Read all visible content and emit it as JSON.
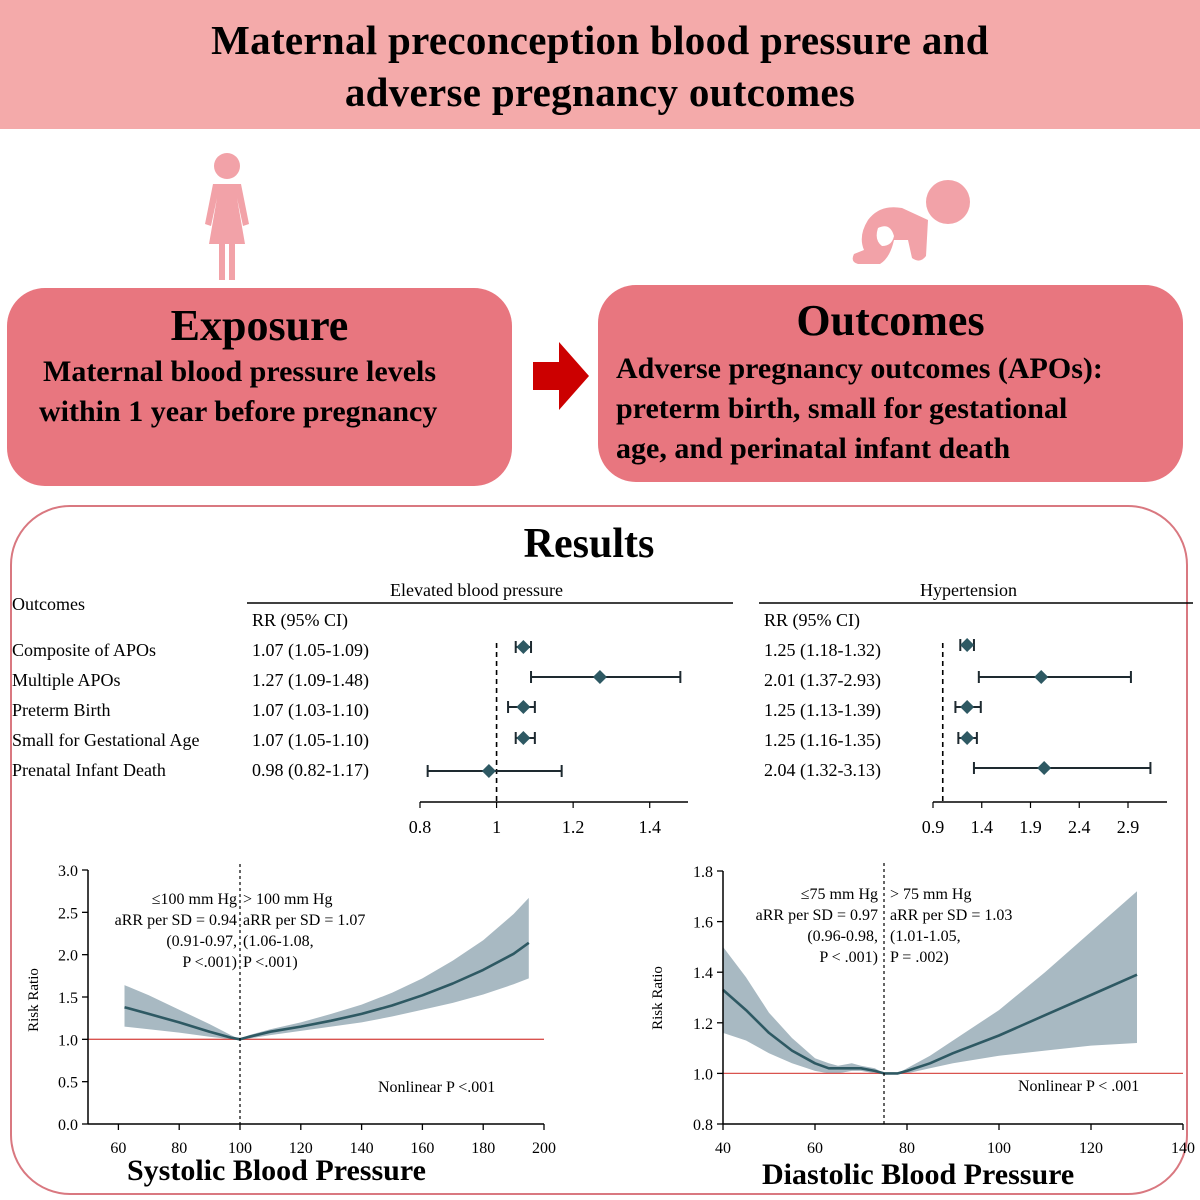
{
  "banner": {
    "title_line1": "Maternal preconception blood pressure and",
    "title_line2": "adverse pregnancy outcomes"
  },
  "exposure": {
    "title": "Exposure",
    "line1": "Maternal blood pressure levels",
    "line2": "within 1 year before pregnancy"
  },
  "outcomes": {
    "title": "Outcomes",
    "line1": "Adverse pregnancy outcomes (APOs):",
    "line2": "preterm birth, small for gestational",
    "line3": "age, and perinatal infant death"
  },
  "colors": {
    "banner": "#f4aaaa",
    "box": "#e8767f",
    "icon": "#f2a2a8",
    "arrow": "#cc0000",
    "marker": "#2e5963",
    "band": "#a8b9c2",
    "refline": "#d9534f"
  },
  "results": {
    "title": "Results",
    "outcomes_header": "Outcomes",
    "rows": [
      {
        "label": "Composite of APOs",
        "elevated": "1.07 (1.05-1.09)",
        "hypertension": "1.25 (1.18-1.32)"
      },
      {
        "label": "Multiple APOs",
        "elevated": "1.27 (1.09-1.48)",
        "hypertension": "2.01 (1.37-2.93)"
      },
      {
        "label": "Preterm Birth",
        "elevated": "1.07 (1.03-1.10)",
        "hypertension": "1.25 (1.13-1.39)"
      },
      {
        "label": "Small for Gestational Age",
        "elevated": "1.07 (1.05-1.10)",
        "hypertension": "1.25 (1.16-1.35)"
      },
      {
        "label": "Prenatal Infant Death",
        "elevated": "0.98 (0.82-1.17)",
        "hypertension": "2.04 (1.32-3.13)"
      }
    ]
  },
  "chart_data": [
    {
      "type": "forest",
      "title": "Elevated blood pressure",
      "column_header": "RR (95% CI)",
      "reference": 1,
      "xlim": [
        0.8,
        1.5
      ],
      "xticks": [
        "0.8",
        "1",
        "1.2",
        "1.4"
      ],
      "points": [
        {
          "label": "Composite of APOs",
          "rr": 1.07,
          "lo": 1.05,
          "hi": 1.09
        },
        {
          "label": "Multiple APOs",
          "rr": 1.27,
          "lo": 1.09,
          "hi": 1.48
        },
        {
          "label": "Preterm Birth",
          "rr": 1.07,
          "lo": 1.03,
          "hi": 1.1
        },
        {
          "label": "Small for Gestational Age",
          "rr": 1.07,
          "lo": 1.05,
          "hi": 1.1
        },
        {
          "label": "Prenatal Infant Death",
          "rr": 0.98,
          "lo": 0.82,
          "hi": 1.17
        }
      ]
    },
    {
      "type": "forest",
      "title": "Hypertension",
      "column_header": "RR (95% CI)",
      "reference": 1,
      "xlim": [
        0.9,
        3.3
      ],
      "xticks": [
        "0.9",
        "1.4",
        "1.9",
        "2.4",
        "2.9"
      ],
      "points": [
        {
          "label": "Composite of APOs",
          "rr": 1.25,
          "lo": 1.18,
          "hi": 1.32
        },
        {
          "label": "Multiple APOs",
          "rr": 2.01,
          "lo": 1.37,
          "hi": 2.93
        },
        {
          "label": "Preterm Birth",
          "rr": 1.25,
          "lo": 1.13,
          "hi": 1.39
        },
        {
          "label": "Small for Gestational Age",
          "rr": 1.25,
          "lo": 1.16,
          "hi": 1.35
        },
        {
          "label": "Prenatal Infant Death",
          "rr": 2.04,
          "lo": 1.32,
          "hi": 3.13
        }
      ]
    },
    {
      "type": "line",
      "title": "Systolic Blood Pressure",
      "ylabel": "Risk Ratio",
      "xlim": [
        50,
        200
      ],
      "ylim": [
        0,
        3
      ],
      "xticks": [
        "60",
        "80",
        "100",
        "120",
        "140",
        "160",
        "180",
        "200"
      ],
      "yticks": [
        "0.0",
        "0.5",
        "1.0",
        "1.5",
        "2.0",
        "2.5",
        "3.0"
      ],
      "threshold": 100,
      "annotation_left": [
        "≤100 mm Hg",
        "aRR per SD = 0.94",
        "(0.91-0.97,",
        "P <.001)"
      ],
      "annotation_right": [
        "> 100 mm Hg",
        "aRR per SD = 1.07",
        "(1.06-1.08,",
        "P <.001)"
      ],
      "nonlinear": "Nonlinear P <.001",
      "x": [
        62,
        70,
        80,
        90,
        97,
        100,
        103,
        110,
        120,
        130,
        140,
        150,
        160,
        170,
        180,
        190,
        195
      ],
      "y": [
        1.38,
        1.3,
        1.2,
        1.09,
        1.02,
        1.0,
        1.03,
        1.09,
        1.15,
        1.22,
        1.3,
        1.4,
        1.52,
        1.66,
        1.82,
        2.01,
        2.14
      ],
      "lower": [
        1.15,
        1.12,
        1.08,
        1.03,
        1.0,
        1.0,
        1.01,
        1.05,
        1.1,
        1.15,
        1.2,
        1.27,
        1.35,
        1.43,
        1.53,
        1.65,
        1.72
      ],
      "upper": [
        1.64,
        1.52,
        1.35,
        1.18,
        1.05,
        1.0,
        1.05,
        1.12,
        1.2,
        1.3,
        1.41,
        1.55,
        1.72,
        1.93,
        2.17,
        2.48,
        2.67
      ]
    },
    {
      "type": "line",
      "title": "Diastolic Blood Pressure",
      "ylabel": "Risk Ratio",
      "xlim": [
        40,
        140
      ],
      "ylim": [
        0.8,
        1.8
      ],
      "xticks": [
        "40",
        "60",
        "80",
        "100",
        "120",
        "140"
      ],
      "yticks": [
        "0.8",
        "1.0",
        "1.2",
        "1.4",
        "1.6",
        "1.8"
      ],
      "threshold": 75,
      "annotation_left": [
        "≤75 mm Hg",
        "aRR per SD = 0.97",
        "(0.96-0.98,",
        "P < .001)"
      ],
      "annotation_right": [
        "> 75 mm Hg",
        "aRR per SD = 1.03",
        "(1.01-1.05,",
        "P = .002)"
      ],
      "nonlinear": "Nonlinear P < .001",
      "x": [
        40,
        45,
        50,
        55,
        60,
        63,
        65,
        68,
        70,
        73,
        75,
        78,
        80,
        85,
        90,
        100,
        110,
        120,
        130
      ],
      "y": [
        1.33,
        1.25,
        1.16,
        1.09,
        1.04,
        1.02,
        1.02,
        1.02,
        1.02,
        1.01,
        1.0,
        1.0,
        1.01,
        1.04,
        1.08,
        1.15,
        1.23,
        1.31,
        1.39
      ],
      "lower": [
        1.16,
        1.13,
        1.08,
        1.04,
        1.01,
        1.0,
        1.0,
        1.01,
        1.01,
        1.0,
        1.0,
        1.0,
        1.0,
        1.02,
        1.04,
        1.07,
        1.09,
        1.11,
        1.12
      ],
      "upper": [
        1.5,
        1.38,
        1.24,
        1.14,
        1.06,
        1.04,
        1.03,
        1.04,
        1.03,
        1.02,
        1.0,
        1.0,
        1.02,
        1.07,
        1.13,
        1.25,
        1.4,
        1.56,
        1.72
      ]
    }
  ]
}
